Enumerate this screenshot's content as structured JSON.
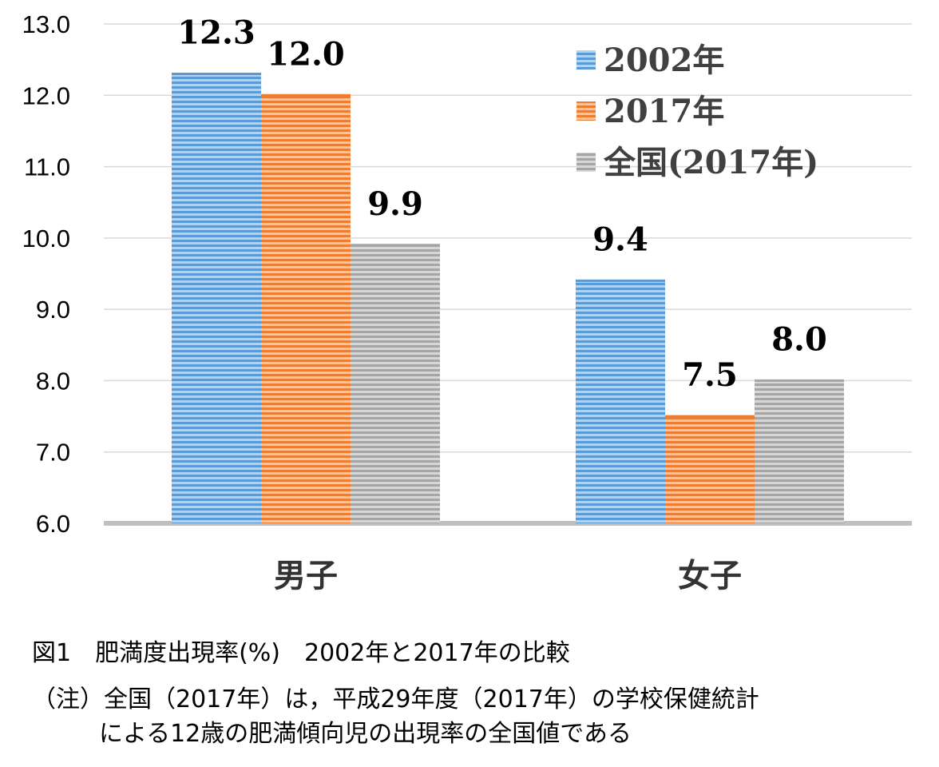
{
  "chart_data": {
    "type": "bar",
    "categories": [
      "男子",
      "女子"
    ],
    "series": [
      {
        "name": "2002年",
        "values": [
          12.3,
          9.4
        ],
        "color": "#5b9bd5"
      },
      {
        "name": "2017年",
        "values": [
          12.0,
          7.5
        ],
        "color": "#ed7d31"
      },
      {
        "name": "全国(2017年)",
        "values": [
          9.9,
          8.0
        ],
        "color": "#a5a5a5"
      }
    ],
    "data_labels": [
      [
        "12.3",
        "9.4"
      ],
      [
        "12.0",
        "7.5"
      ],
      [
        "9.9",
        "8.0"
      ]
    ],
    "ylim": [
      6.0,
      13.0
    ],
    "yticks": [
      "6.0",
      "7.0",
      "8.0",
      "9.0",
      "10.0",
      "11.0",
      "12.0",
      "13.0"
    ],
    "grid": true,
    "legend_position": "top-right",
    "fill_pattern": "horizontal-stripes"
  },
  "captions": {
    "title": "図1　肥満度出現率(%)　2002年と2017年の比較",
    "note_line1": "（注）全国（2017年）は，平成29年度（2017年）の学校保健統計",
    "note_line2": "による12歳の肥満傾向児の出現率の全国値である"
  }
}
